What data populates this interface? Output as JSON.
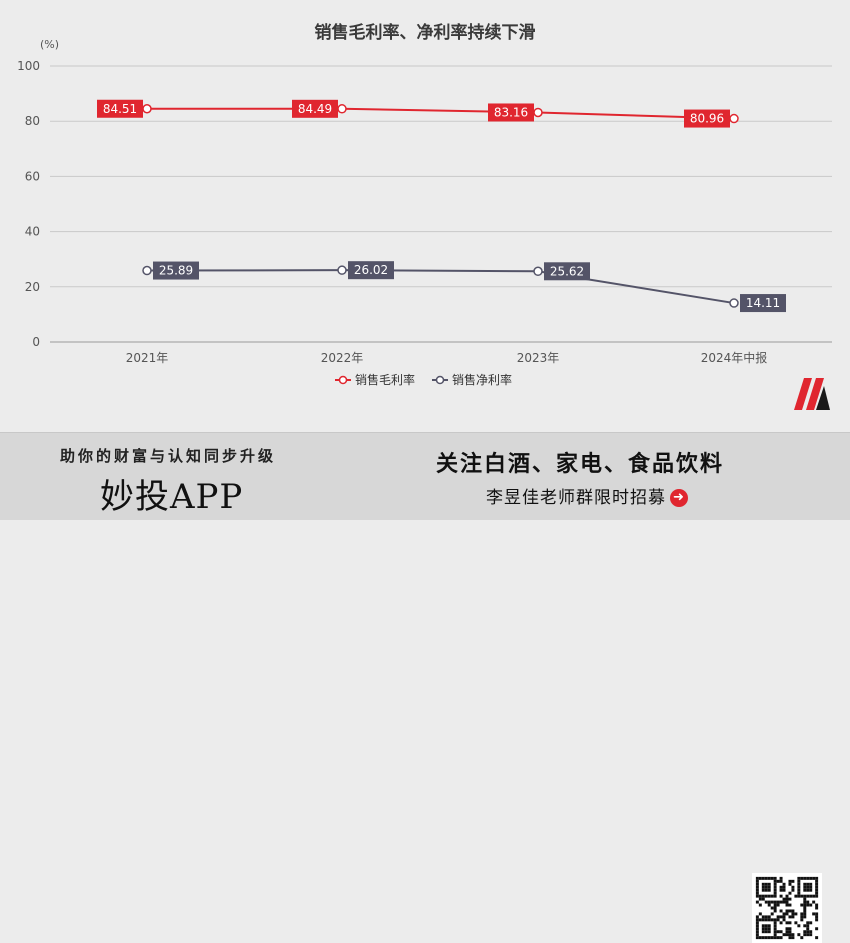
{
  "chart_data": {
    "type": "line",
    "title": "销售毛利率、净利率持续下滑",
    "unit": "(%)",
    "categories": [
      "2021年",
      "2022年",
      "2023年",
      "2024年中报"
    ],
    "ylim": [
      0,
      100
    ],
    "yticks": [
      0,
      20,
      40,
      60,
      80,
      100
    ],
    "grid": true,
    "legend_position": "bottom",
    "series": [
      {
        "name": "销售毛利率",
        "values": [
          84.51,
          84.49,
          83.16,
          80.96
        ],
        "labels": [
          "84.51",
          "84.49",
          "83.16",
          "80.96"
        ],
        "color": "#e0262f"
      },
      {
        "name": "销售净利率",
        "values": [
          25.89,
          26.02,
          25.62,
          14.11
        ],
        "labels": [
          "25.89",
          "26.02",
          "25.62",
          "14.11"
        ],
        "color": "#545468"
      }
    ]
  },
  "banner": {
    "slogan": "助你的财富与认知同步升级",
    "app_name": "妙投APP",
    "headline": "关注白酒、家电、食品饮料",
    "subline": "李昱佳老师群限时招募",
    "arrow_icon": "arrow-right-circle-icon",
    "accent_color": "#e0262f"
  },
  "logo_icon": "brand-m-logo-icon",
  "qr_icon": "qr-code-icon"
}
